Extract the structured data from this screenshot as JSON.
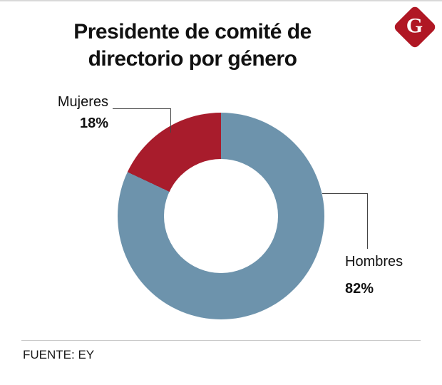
{
  "header": {
    "title_line1": "Presidente de comité de",
    "title_line2": "directorio por género",
    "logo_letter": "G"
  },
  "chart_data": {
    "type": "pie",
    "subtype": "donut",
    "title": "Presidente de comité de directorio por género",
    "categories": [
      "Mujeres",
      "Hombres"
    ],
    "values": [
      18,
      82
    ],
    "value_labels": [
      "18%",
      "82%"
    ],
    "colors": [
      "#a81c2c",
      "#6d93ac"
    ],
    "legend_position": "callout-labels",
    "start_angle_deg": 0,
    "direction": "clockwise-from-top"
  },
  "footer": {
    "source": "FUENTE: EY"
  }
}
